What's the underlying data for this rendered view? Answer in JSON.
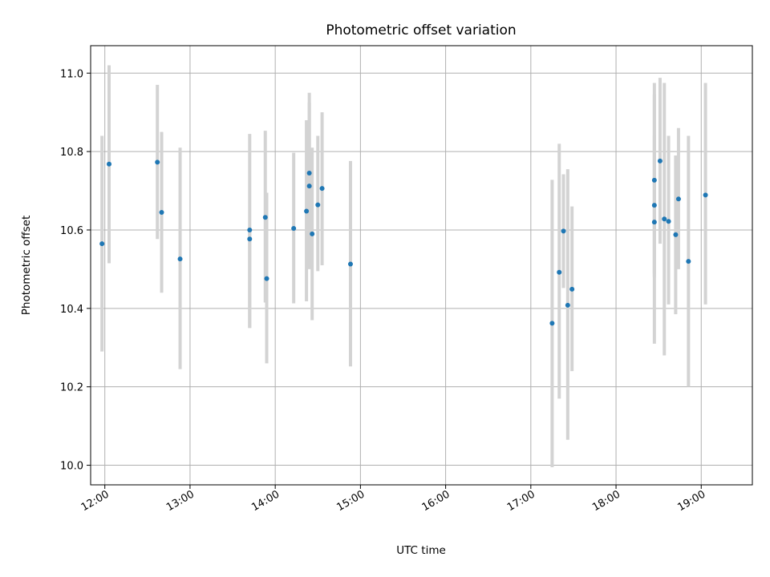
{
  "chart_data": {
    "type": "scatter",
    "title": "Photometric offset variation",
    "xlabel": "UTC time",
    "ylabel": "Photometric offset",
    "xlim": [
      "11:50",
      "19:36"
    ],
    "ylim": [
      9.95,
      11.07
    ],
    "x_ticks": [
      "12:00",
      "13:00",
      "14:00",
      "15:00",
      "16:00",
      "17:00",
      "18:00",
      "19:00"
    ],
    "y_ticks": [
      "10.0",
      "10.2",
      "10.4",
      "10.6",
      "10.8",
      "11.0"
    ],
    "grid": true,
    "point_color": "#1f77b4",
    "errorbar_color": "#d3d3d3",
    "points": [
      {
        "x": "11:58",
        "y": 10.565,
        "err_low": 10.29,
        "err_high": 10.84
      },
      {
        "x": "12:03",
        "y": 10.768,
        "err_low": 10.515,
        "err_high": 11.02
      },
      {
        "x": "12:37",
        "y": 10.773,
        "err_low": 10.577,
        "err_high": 10.97
      },
      {
        "x": "12:40",
        "y": 10.645,
        "err_low": 10.44,
        "err_high": 10.85
      },
      {
        "x": "12:53",
        "y": 10.526,
        "err_low": 10.245,
        "err_high": 10.81
      },
      {
        "x": "13:42",
        "y": 10.6,
        "err_low": 10.35,
        "err_high": 10.845
      },
      {
        "x": "13:42",
        "y": 10.577,
        "err_low": 10.35,
        "err_high": 10.6
      },
      {
        "x": "13:53",
        "y": 10.632,
        "err_low": 10.415,
        "err_high": 10.853
      },
      {
        "x": "13:54",
        "y": 10.476,
        "err_low": 10.26,
        "err_high": 10.695
      },
      {
        "x": "14:13",
        "y": 10.604,
        "err_low": 10.413,
        "err_high": 10.797
      },
      {
        "x": "14:22",
        "y": 10.648,
        "err_low": 10.418,
        "err_high": 10.88
      },
      {
        "x": "14:24",
        "y": 10.745,
        "err_low": 10.54,
        "err_high": 10.95
      },
      {
        "x": "14:24",
        "y": 10.712,
        "err_low": 10.5,
        "err_high": 10.925
      },
      {
        "x": "14:26",
        "y": 10.59,
        "err_low": 10.37,
        "err_high": 10.81
      },
      {
        "x": "14:30",
        "y": 10.664,
        "err_low": 10.495,
        "err_high": 10.84
      },
      {
        "x": "14:33",
        "y": 10.706,
        "err_low": 10.51,
        "err_high": 10.9
      },
      {
        "x": "14:53",
        "y": 10.513,
        "err_low": 10.252,
        "err_high": 10.776
      },
      {
        "x": "17:15",
        "y": 10.362,
        "err_low": 9.995,
        "err_high": 10.728
      },
      {
        "x": "17:20",
        "y": 10.492,
        "err_low": 10.17,
        "err_high": 10.82
      },
      {
        "x": "17:23",
        "y": 10.597,
        "err_low": 10.452,
        "err_high": 10.742
      },
      {
        "x": "17:26",
        "y": 10.408,
        "err_low": 10.065,
        "err_high": 10.755
      },
      {
        "x": "17:29",
        "y": 10.449,
        "err_low": 10.24,
        "err_high": 10.66
      },
      {
        "x": "18:27",
        "y": 10.663,
        "err_low": 10.49,
        "err_high": 10.84
      },
      {
        "x": "18:27",
        "y": 10.727,
        "err_low": 10.48,
        "err_high": 10.975
      },
      {
        "x": "18:27",
        "y": 10.62,
        "err_low": 10.31,
        "err_high": 10.945
      },
      {
        "x": "18:31",
        "y": 10.776,
        "err_low": 10.565,
        "err_high": 10.988
      },
      {
        "x": "18:34",
        "y": 10.628,
        "err_low": 10.28,
        "err_high": 10.975
      },
      {
        "x": "18:37",
        "y": 10.622,
        "err_low": 10.41,
        "err_high": 10.84
      },
      {
        "x": "18:42",
        "y": 10.588,
        "err_low": 10.385,
        "err_high": 10.79
      },
      {
        "x": "18:44",
        "y": 10.679,
        "err_low": 10.5,
        "err_high": 10.86
      },
      {
        "x": "18:51",
        "y": 10.52,
        "err_low": 10.2,
        "err_high": 10.84
      },
      {
        "x": "19:03",
        "y": 10.689,
        "err_low": 10.41,
        "err_high": 10.975
      }
    ]
  }
}
